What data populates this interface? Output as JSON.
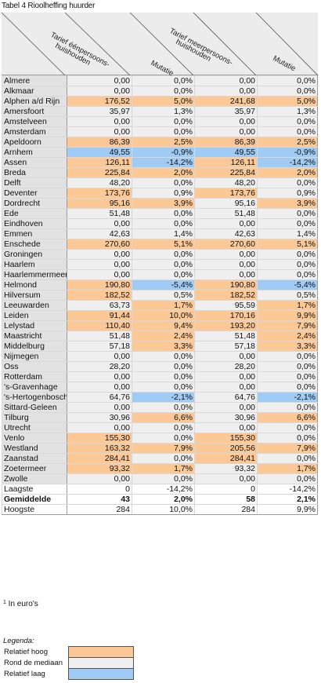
{
  "title": "Tabel 4  Rioolheffing huurder",
  "headers": {
    "col1": [
      "Tarief éénpersoons-",
      "huishouden"
    ],
    "col2": "Mutatie",
    "col3": [
      "Tarief meerpersoons-",
      "huishouden"
    ],
    "col4": "Mutatie"
  },
  "rows": [
    {
      "name": "Almere",
      "v1": "0,00",
      "m1": "0,0%",
      "v2": "0,00",
      "m2": "0,0%",
      "h": "n",
      "h2": "n"
    },
    {
      "name": "Alkmaar",
      "v1": "0,00",
      "m1": "0,0%",
      "v2": "0,00",
      "m2": "0,0%",
      "h": "n",
      "h2": "n"
    },
    {
      "name": "Alphen a/d Rijn",
      "v1": "176,52",
      "m1": "5,0%",
      "v2": "241,68",
      "m2": "5,0%",
      "h": "hi",
      "h2": "hi"
    },
    {
      "name": "Amersfoort",
      "v1": "35,97",
      "m1": "1,3%",
      "v2": "35,97",
      "m2": "1,3%",
      "h": "n",
      "h2": "n"
    },
    {
      "name": "Amstelveen",
      "v1": "0,00",
      "m1": "0,0%",
      "v2": "0,00",
      "m2": "0,0%",
      "h": "n",
      "h2": "n"
    },
    {
      "name": "Amsterdam",
      "v1": "0,00",
      "m1": "0,0%",
      "v2": "0,00",
      "m2": "0,0%",
      "h": "n",
      "h2": "n"
    },
    {
      "name": "Apeldoorn",
      "v1": "86,39",
      "m1": "2,5%",
      "v2": "86,39",
      "m2": "2,5%",
      "h": "hi",
      "h2": "hi"
    },
    {
      "name": "Arnhem",
      "v1": "49,55",
      "m1": "-0,9%",
      "v2": "49,55",
      "m2": "-0,9%",
      "h": "lo",
      "h2": "lo"
    },
    {
      "name": "Assen",
      "v1": "126,11",
      "m1": "-14,2%",
      "v2": "126,11",
      "m2": "-14,2%",
      "h": "hi",
      "h2": "hi",
      "mh": "lo",
      "mh2": "lo"
    },
    {
      "name": "Breda",
      "v1": "225,84",
      "m1": "2,0%",
      "v2": "225,84",
      "m2": "2,0%",
      "h": "hi",
      "h2": "hi"
    },
    {
      "name": "Delft",
      "v1": "48,20",
      "m1": "0,0%",
      "v2": "48,20",
      "m2": "0,0%",
      "h": "n",
      "h2": "n"
    },
    {
      "name": "Deventer",
      "v1": "173,76",
      "m1": "0,9%",
      "v2": "173,76",
      "m2": "0,9%",
      "h": "hi",
      "h2": "hi",
      "mh": "n",
      "mh2": "n"
    },
    {
      "name": "Dordrecht",
      "v1": "95,16",
      "m1": "3,9%",
      "v2": "95,16",
      "m2": "3,9%",
      "h": "hi",
      "h2": "n",
      "mh2": "hi"
    },
    {
      "name": "Ede",
      "v1": "51,48",
      "m1": "0,0%",
      "v2": "51,48",
      "m2": "0,0%",
      "h": "n",
      "h2": "n"
    },
    {
      "name": "Eindhoven",
      "v1": "0,00",
      "m1": "0,0%",
      "v2": "0,00",
      "m2": "0,0%",
      "h": "n",
      "h2": "n"
    },
    {
      "name": "Emmen",
      "v1": "42,63",
      "m1": "1,4%",
      "v2": "42,63",
      "m2": "1,4%",
      "h": "n",
      "h2": "n"
    },
    {
      "name": "Enschede",
      "v1": "270,60",
      "m1": "5,1%",
      "v2": "270,60",
      "m2": "5,1%",
      "h": "hi",
      "h2": "hi"
    },
    {
      "name": "Groningen",
      "v1": "0,00",
      "m1": "0,0%",
      "v2": "0,00",
      "m2": "0,0%",
      "h": "n",
      "h2": "n"
    },
    {
      "name": "Haarlem",
      "v1": "0,00",
      "m1": "0,0%",
      "v2": "0,00",
      "m2": "0,0%",
      "h": "n",
      "h2": "n"
    },
    {
      "name": "Haarlemmermeer",
      "v1": "0,00",
      "m1": "0,0%",
      "v2": "0,00",
      "m2": "0,0%",
      "h": "n",
      "h2": "n"
    },
    {
      "name": "Helmond",
      "v1": "190,80",
      "m1": "-5,4%",
      "v2": "190,80",
      "m2": "-5,4%",
      "h": "hi",
      "h2": "hi",
      "mh": "lo",
      "mh2": "lo"
    },
    {
      "name": "Hilversum",
      "v1": "182,52",
      "m1": "0,5%",
      "v2": "182,52",
      "m2": "0,5%",
      "h": "hi",
      "h2": "hi",
      "mh": "n",
      "mh2": "n"
    },
    {
      "name": "Leeuwarden",
      "v1": "63,73",
      "m1": "1,7%",
      "v2": "95,59",
      "m2": "1,7%",
      "h": "n",
      "h2": "n",
      "mh": "hi",
      "mh2": "hi"
    },
    {
      "name": "Leiden",
      "v1": "91,44",
      "m1": "10,0%",
      "v2": "170,16",
      "m2": "9,9%",
      "h": "hi",
      "h2": "hi"
    },
    {
      "name": "Lelystad",
      "v1": "110,40",
      "m1": "9,4%",
      "v2": "193,20",
      "m2": "7,9%",
      "h": "hi",
      "h2": "hi"
    },
    {
      "name": "Maastricht",
      "v1": "51,48",
      "m1": "2,4%",
      "v2": "51,48",
      "m2": "2,4%",
      "h": "n",
      "h2": "n",
      "mh": "hi",
      "mh2": "hi"
    },
    {
      "name": "Middelburg",
      "v1": "57,18",
      "m1": "3,3%",
      "v2": "57,18",
      "m2": "3,3%",
      "h": "n",
      "h2": "n",
      "mh": "hi",
      "mh2": "hi"
    },
    {
      "name": "Nijmegen",
      "v1": "0,00",
      "m1": "0,0%",
      "v2": "0,00",
      "m2": "0,0%",
      "h": "n",
      "h2": "n"
    },
    {
      "name": "Oss",
      "v1": "28,20",
      "m1": "0,0%",
      "v2": "28,20",
      "m2": "0,0%",
      "h": "n",
      "h2": "n"
    },
    {
      "name": "Rotterdam",
      "v1": "0,00",
      "m1": "0,0%",
      "v2": "0,00",
      "m2": "0,0%",
      "h": "n",
      "h2": "n"
    },
    {
      "name": "'s-Gravenhage",
      "v1": "0,00",
      "m1": "0,0%",
      "v2": "0,00",
      "m2": "0,0%",
      "h": "n",
      "h2": "n"
    },
    {
      "name": "'s-Hertogenbosch",
      "v1": "64,76",
      "m1": "-2,1%",
      "v2": "64,76",
      "m2": "-2,1%",
      "h": "n",
      "h2": "n",
      "mh": "lo",
      "mh2": "lo"
    },
    {
      "name": "Sittard-Geleen",
      "v1": "0,00",
      "m1": "0,0%",
      "v2": "0,00",
      "m2": "0,0%",
      "h": "n",
      "h2": "n"
    },
    {
      "name": "Tilburg",
      "v1": "30,96",
      "m1": "6,6%",
      "v2": "30,96",
      "m2": "6,6%",
      "h": "n",
      "h2": "n",
      "mh": "hi",
      "mh2": "hi"
    },
    {
      "name": "Utrecht",
      "v1": "0,00",
      "m1": "0,0%",
      "v2": "0,00",
      "m2": "0,0%",
      "h": "n",
      "h2": "n"
    },
    {
      "name": "Venlo",
      "v1": "155,30",
      "m1": "0,0%",
      "v2": "155,30",
      "m2": "0,0%",
      "h": "hi",
      "h2": "hi",
      "mh": "n",
      "mh2": "n"
    },
    {
      "name": "Westland",
      "v1": "163,32",
      "m1": "7,9%",
      "v2": "205,56",
      "m2": "7,9%",
      "h": "hi",
      "h2": "hi"
    },
    {
      "name": "Zaanstad",
      "v1": "284,41",
      "m1": "0,0%",
      "v2": "284,41",
      "m2": "0,0%",
      "h": "hi",
      "h2": "hi",
      "mh": "n",
      "mh2": "n"
    },
    {
      "name": "Zoetermeer",
      "v1": "93,32",
      "m1": "1,7%",
      "v2": "93,32",
      "m2": "1,7%",
      "h": "hi",
      "h2": "n",
      "mh2": "hi"
    },
    {
      "name": "Zwolle",
      "v1": "0,00",
      "m1": "0,0%",
      "v2": "0,00",
      "m2": "0,0%",
      "h": "n",
      "h2": "n"
    }
  ],
  "stats": [
    {
      "name": "Laagste",
      "v1": "0",
      "m1": "-14,2%",
      "v2": "0",
      "m2": "-14,2%",
      "bold": false
    },
    {
      "name": "Gemiddelde",
      "v1": "43",
      "m1": "2,0%",
      "v2": "58",
      "m2": "2,1%",
      "bold": true
    },
    {
      "name": "Hoogste",
      "v1": "284",
      "m1": "10,0%",
      "v2": "284",
      "m2": "9,9%",
      "bold": false
    }
  ],
  "footnote": {
    "sup": "1",
    "text": " In euro's"
  },
  "legend": {
    "title": "Legenda:",
    "items": [
      {
        "label": "Relatief hoog",
        "color": "#fcc896"
      },
      {
        "label": "Rond de mediaan",
        "color": "#efefef"
      },
      {
        "label": "Relatief laag",
        "color": "#9fcbf5"
      }
    ]
  }
}
